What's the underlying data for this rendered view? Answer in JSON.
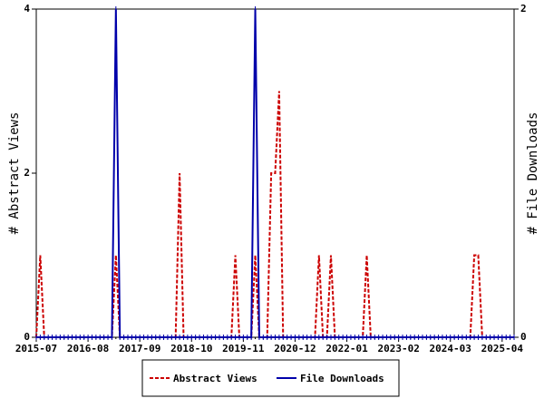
{
  "chart_data": {
    "type": "line",
    "categories": [
      "2015-07",
      null,
      null,
      null,
      null,
      null,
      null,
      null,
      null,
      null,
      null,
      null,
      null,
      "2016-08",
      null,
      null,
      null,
      null,
      null,
      null,
      null,
      null,
      null,
      null,
      null,
      null,
      "2017-09",
      null,
      null,
      null,
      null,
      null,
      null,
      null,
      null,
      null,
      null,
      null,
      null,
      "2018-10",
      null,
      null,
      null,
      null,
      null,
      null,
      null,
      null,
      null,
      null,
      null,
      null,
      "2019-11",
      null,
      null,
      null,
      null,
      null,
      null,
      null,
      null,
      null,
      null,
      null,
      null,
      "2020-12",
      null,
      null,
      null,
      null,
      null,
      null,
      null,
      null,
      null,
      null,
      null,
      null,
      "2022-01",
      null,
      null,
      null,
      null,
      null,
      null,
      null,
      null,
      null,
      null,
      null,
      null,
      "2023-02",
      null,
      null,
      null,
      null,
      null,
      null,
      null,
      null,
      null,
      null,
      null,
      null,
      "2024-03",
      null,
      null,
      null,
      null,
      null,
      null,
      null,
      null,
      null,
      null,
      null,
      null,
      "2025-04",
      null,
      null,
      null
    ],
    "series": [
      {
        "name": "Abstract Views",
        "color": "#cc0000",
        "axis": "y",
        "values": [
          0,
          1,
          0,
          0,
          0,
          0,
          0,
          0,
          0,
          0,
          0,
          0,
          0,
          0,
          0,
          0,
          0,
          0,
          0,
          0,
          1,
          0,
          0,
          0,
          0,
          0,
          0,
          0,
          0,
          0,
          0,
          0,
          0,
          0,
          0,
          0,
          2,
          0,
          0,
          0,
          0,
          0,
          0,
          0,
          0,
          0,
          0,
          0,
          0,
          0,
          1,
          0,
          0,
          0,
          0,
          1,
          0,
          0,
          0,
          2,
          2,
          3,
          0,
          0,
          0,
          0,
          0,
          0,
          0,
          0,
          0,
          1,
          0,
          0,
          1,
          0,
          0,
          0,
          0,
          0,
          0,
          0,
          0,
          1,
          0,
          0,
          0,
          0,
          0,
          0,
          0,
          0,
          0,
          0,
          0,
          0,
          0,
          0,
          0,
          0,
          0,
          0,
          0,
          0,
          0,
          0,
          0,
          0,
          0,
          0,
          1,
          1,
          0,
          0,
          0,
          0,
          0,
          0,
          0,
          0,
          0
        ]
      },
      {
        "name": "File Downloads",
        "color": "#0000aa",
        "axis": "y2",
        "values": [
          0,
          0,
          0,
          0,
          0,
          0,
          0,
          0,
          0,
          0,
          0,
          0,
          0,
          0,
          0,
          0,
          0,
          0,
          0,
          0,
          2,
          0,
          0,
          0,
          0,
          0,
          0,
          0,
          0,
          0,
          0,
          0,
          0,
          0,
          0,
          0,
          0,
          0,
          0,
          0,
          0,
          0,
          0,
          0,
          0,
          0,
          0,
          0,
          0,
          0,
          0,
          0,
          0,
          0,
          0,
          2,
          0,
          0,
          0,
          0,
          0,
          0,
          0,
          0,
          0,
          0,
          0,
          0,
          0,
          0,
          0,
          0,
          0,
          0,
          0,
          0,
          0,
          0,
          0,
          0,
          0,
          0,
          0,
          0,
          0,
          0,
          0,
          0,
          0,
          0,
          0,
          0,
          0,
          0,
          0,
          0,
          0,
          0,
          0,
          0,
          0,
          0,
          0,
          0,
          0,
          0,
          0,
          0,
          0,
          0,
          0,
          0,
          0,
          0,
          0,
          0,
          0,
          0,
          0,
          0,
          0
        ]
      }
    ],
    "ylabel": "# Abstract Views",
    "y2label": "# File Downloads",
    "ylim": [
      0,
      4
    ],
    "yticks": [
      0,
      2,
      4
    ],
    "y2lim": [
      0,
      2
    ],
    "y2ticks": [
      0,
      2
    ],
    "legend": "bottom"
  }
}
